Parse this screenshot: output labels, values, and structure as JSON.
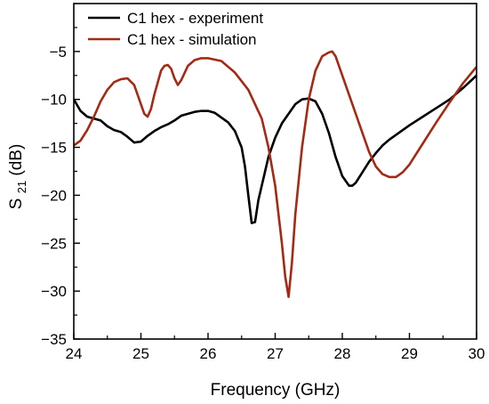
{
  "chart_data": {
    "type": "line",
    "xlabel": "Frequency (GHz)",
    "ylabel": {
      "main": "S",
      "sub": "21",
      "unit": " (dB)"
    },
    "xlim": [
      24,
      30
    ],
    "ylim": [
      -35,
      0
    ],
    "xticks": [
      24,
      25,
      26,
      27,
      28,
      29,
      30
    ],
    "yticks": [
      -35,
      -30,
      -25,
      -20,
      -15,
      -10,
      -5
    ],
    "x_minor_step": 0.5,
    "y_minor_step": 2.5,
    "legend_position": "top-left",
    "series": [
      {
        "name": "C1 hex - experiment",
        "color": "#000000",
        "x": [
          24.0,
          24.1,
          24.2,
          24.3,
          24.4,
          24.5,
          24.6,
          24.7,
          24.8,
          24.9,
          25.0,
          25.1,
          25.2,
          25.3,
          25.4,
          25.5,
          25.6,
          25.7,
          25.8,
          25.9,
          26.0,
          26.1,
          26.2,
          26.3,
          26.4,
          26.5,
          26.55,
          26.6,
          26.65,
          26.7,
          26.75,
          26.8,
          26.9,
          27.0,
          27.1,
          27.2,
          27.3,
          27.4,
          27.5,
          27.6,
          27.7,
          27.8,
          27.9,
          28.0,
          28.1,
          28.15,
          28.2,
          28.3,
          28.4,
          28.5,
          28.6,
          28.7,
          28.8,
          28.9,
          29.0,
          29.2,
          29.4,
          29.6,
          29.8,
          30.0
        ],
        "y": [
          -10.0,
          -11.2,
          -11.8,
          -12.0,
          -12.2,
          -12.8,
          -13.2,
          -13.4,
          -13.9,
          -14.5,
          -14.4,
          -13.8,
          -13.3,
          -12.9,
          -12.6,
          -12.2,
          -11.7,
          -11.5,
          -11.3,
          -11.2,
          -11.2,
          -11.4,
          -11.9,
          -12.4,
          -13.3,
          -15.0,
          -17.0,
          -20.0,
          -22.9,
          -22.8,
          -20.5,
          -19.0,
          -16.0,
          -14.0,
          -12.5,
          -11.5,
          -10.5,
          -10.0,
          -9.9,
          -10.2,
          -11.5,
          -13.5,
          -16.0,
          -18.0,
          -19.0,
          -19.0,
          -18.7,
          -17.6,
          -16.5,
          -15.6,
          -14.8,
          -14.2,
          -13.7,
          -13.2,
          -12.7,
          -11.8,
          -10.9,
          -10.0,
          -8.8,
          -7.5
        ]
      },
      {
        "name": "C1 hex - simulation",
        "color": "#a52a14",
        "x": [
          24.0,
          24.1,
          24.2,
          24.3,
          24.4,
          24.5,
          24.6,
          24.7,
          24.8,
          24.9,
          25.0,
          25.05,
          25.1,
          25.15,
          25.2,
          25.3,
          25.35,
          25.4,
          25.45,
          25.5,
          25.55,
          25.6,
          25.7,
          25.8,
          25.9,
          26.0,
          26.2,
          26.4,
          26.6,
          26.8,
          26.9,
          27.0,
          27.1,
          27.15,
          27.2,
          27.25,
          27.3,
          27.4,
          27.5,
          27.6,
          27.7,
          27.8,
          27.85,
          27.9,
          28.0,
          28.1,
          28.2,
          28.3,
          28.4,
          28.5,
          28.6,
          28.7,
          28.8,
          28.9,
          29.0,
          29.2,
          29.4,
          29.6,
          29.8,
          30.0
        ],
        "y": [
          -14.8,
          -14.3,
          -13.2,
          -11.8,
          -10.2,
          -9.0,
          -8.2,
          -7.9,
          -7.8,
          -8.5,
          -10.5,
          -11.5,
          -11.8,
          -11.0,
          -9.5,
          -7.0,
          -6.5,
          -6.4,
          -6.8,
          -7.8,
          -8.5,
          -8.0,
          -6.5,
          -5.9,
          -5.7,
          -5.7,
          -6.0,
          -7.2,
          -9.0,
          -12.0,
          -15.0,
          -19.0,
          -25.0,
          -28.5,
          -30.6,
          -27.0,
          -22.0,
          -15.0,
          -10.0,
          -7.0,
          -5.5,
          -5.1,
          -5.0,
          -5.5,
          -7.5,
          -9.5,
          -11.5,
          -13.5,
          -15.5,
          -17.0,
          -17.8,
          -18.1,
          -18.1,
          -17.6,
          -16.8,
          -14.6,
          -12.4,
          -10.3,
          -8.3,
          -6.6
        ]
      }
    ]
  }
}
